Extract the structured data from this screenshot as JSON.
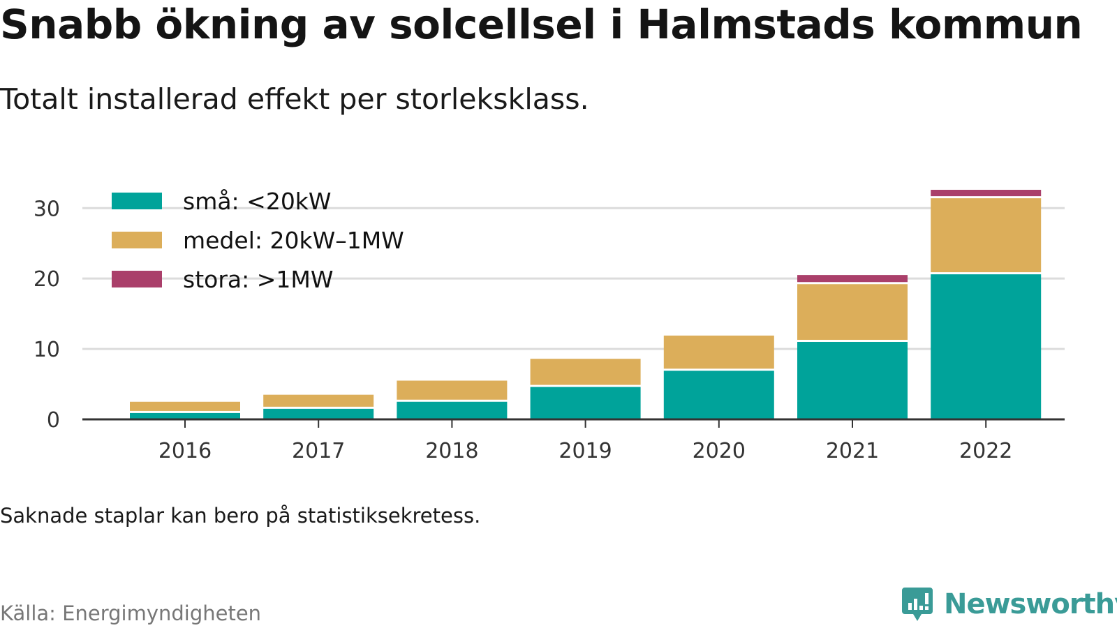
{
  "title": "Snabb ökning av solcellsel i Halmstads kommun",
  "subtitle": "Totalt installerad effekt per storleksklass.",
  "note": "Saknade staplar kan bero på statistiksekretess.",
  "source": "Källa: Energimyndigheten",
  "brand": {
    "name": "Newsworthy",
    "icon": "newsworthy-logo-icon",
    "color": "#3a9b97"
  },
  "colors": {
    "small": "#00a39a",
    "medium": "#dcae5a",
    "large": "#aa3f6a",
    "grid": "#dcdcdc",
    "axis": "#333333"
  },
  "chart_data": {
    "type": "bar",
    "stacked": true,
    "categories": [
      "2016",
      "2017",
      "2018",
      "2019",
      "2020",
      "2021",
      "2022"
    ],
    "series": [
      {
        "name": "små: <20kW",
        "color": "#00a39a",
        "values": [
          0.9,
          1.5,
          2.5,
          4.6,
          6.9,
          11.0,
          20.6
        ]
      },
      {
        "name": "medel: 20kW–1MW",
        "color": "#dcae5a",
        "values": [
          1.6,
          2.0,
          3.0,
          4.0,
          5.0,
          8.2,
          10.8
        ]
      },
      {
        "name": "stora: >1MW",
        "color": "#aa3f6a",
        "values": [
          0,
          0,
          0,
          0,
          0,
          1.3,
          1.2
        ]
      }
    ],
    "yticks": [
      0,
      10,
      20,
      30
    ],
    "ylim": [
      0,
      32.8
    ],
    "grid": true,
    "legend_position": "top-left",
    "xlabel": "",
    "ylabel": ""
  }
}
